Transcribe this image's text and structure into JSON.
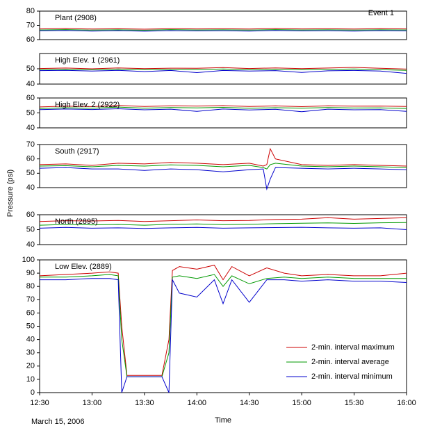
{
  "chart_data": [
    {
      "type": "line",
      "title": "Plant (2908)",
      "annotation": "Event 1",
      "x": [
        "12:30",
        "12:45",
        "13:00",
        "13:15",
        "13:30",
        "13:45",
        "14:00",
        "14:15",
        "14:30",
        "14:45",
        "15:00",
        "15:15",
        "15:30",
        "15:45",
        "16:00"
      ],
      "xlim": [
        "12:30",
        "16:00"
      ],
      "ylim": [
        60,
        80
      ],
      "yticks": [
        60,
        70,
        80
      ],
      "series": [
        {
          "color": "#cc0000",
          "values": [
            67.5,
            67.8,
            67.4,
            67.6,
            67.3,
            67.7,
            67.5,
            67.6,
            67.4,
            67.8,
            67.5,
            67.6,
            67.4,
            67.7,
            67.5
          ]
        },
        {
          "color": "#009900",
          "values": [
            66.8,
            67,
            66.7,
            66.9,
            66.6,
            67,
            66.8,
            66.9,
            66.7,
            67,
            66.8,
            66.9,
            66.7,
            66.9,
            66.8
          ]
        },
        {
          "color": "#0000cc",
          "values": [
            66.2,
            66.4,
            66,
            66.3,
            65.9,
            66.3,
            66.1,
            66.2,
            66,
            66.4,
            66.1,
            66.2,
            66,
            66.3,
            66.1
          ]
        }
      ]
    },
    {
      "type": "line",
      "title": "High Elev. 1 (2961)",
      "x": [
        "12:30",
        "12:45",
        "13:00",
        "13:15",
        "13:30",
        "13:45",
        "14:00",
        "14:15",
        "14:30",
        "14:45",
        "15:00",
        "15:15",
        "15:30",
        "15:45",
        "16:00"
      ],
      "xlim": [
        "12:30",
        "16:00"
      ],
      "ylim": [
        40,
        60
      ],
      "yticks": [
        40,
        50
      ],
      "series": [
        {
          "color": "#cc0000",
          "values": [
            50.2,
            50.5,
            50,
            50.6,
            50.1,
            50.4,
            50.3,
            50.8,
            50.2,
            50.6,
            50.1,
            50.5,
            50.9,
            50.3,
            49.8
          ]
        },
        {
          "color": "#009900",
          "values": [
            49.5,
            49.7,
            49.3,
            49.8,
            49.4,
            49.6,
            49.5,
            49.9,
            49.4,
            49.7,
            49.3,
            49.6,
            49.9,
            49.4,
            49
          ]
        },
        {
          "color": "#0000cc",
          "values": [
            48.8,
            49,
            48.5,
            49,
            48.2,
            48.9,
            47.5,
            48.9,
            48.5,
            48.8,
            47.6,
            48.7,
            48.9,
            48.5,
            47
          ]
        }
      ]
    },
    {
      "type": "line",
      "title": "High Elev. 2 (2922)",
      "x": [
        "12:30",
        "12:45",
        "13:00",
        "13:15",
        "13:30",
        "13:45",
        "14:00",
        "14:15",
        "14:30",
        "14:45",
        "15:00",
        "15:15",
        "15:30",
        "15:45",
        "16:00"
      ],
      "xlim": [
        "12:30",
        "16:00"
      ],
      "ylim": [
        40,
        60
      ],
      "yticks": [
        40,
        50,
        60
      ],
      "series": [
        {
          "color": "#cc0000",
          "values": [
            54,
            54.5,
            54.2,
            55,
            54.3,
            54.8,
            54.6,
            54.9,
            54.3,
            54.7,
            54.2,
            54.8,
            54.5,
            54.6,
            54.3
          ]
        },
        {
          "color": "#009900",
          "values": [
            53,
            53.5,
            53.1,
            53.9,
            53.2,
            53.6,
            53.4,
            53.7,
            53.1,
            53.5,
            53.2,
            53.6,
            53.3,
            53.4,
            53
          ]
        },
        {
          "color": "#0000cc",
          "values": [
            52.2,
            52.6,
            52.3,
            52.8,
            52.1,
            52.5,
            51,
            52.6,
            52,
            52.4,
            50.8,
            52.5,
            52.1,
            52.2,
            51
          ]
        }
      ]
    },
    {
      "type": "line",
      "title": "South (2917)",
      "x": [
        "12:30",
        "12:45",
        "13:00",
        "13:15",
        "13:30",
        "13:45",
        "14:00",
        "14:15",
        "14:30",
        "14:38",
        "14:40",
        "14:42",
        "14:45",
        "15:00",
        "15:15",
        "15:30",
        "15:45",
        "16:00"
      ],
      "xlim": [
        "12:30",
        "16:00"
      ],
      "ylim": [
        40,
        70
      ],
      "yticks": [
        40,
        50,
        60,
        70
      ],
      "series": [
        {
          "color": "#cc0000",
          "values": [
            56,
            56.5,
            55.5,
            57,
            56.5,
            57.5,
            57,
            56,
            57,
            55,
            56,
            67,
            60,
            56,
            55.5,
            56,
            55.5,
            55
          ]
        },
        {
          "color": "#009900",
          "values": [
            55,
            55.3,
            54.5,
            55.5,
            55,
            55.8,
            55.5,
            54.5,
            55.5,
            54,
            53,
            56,
            57,
            55,
            54.5,
            55,
            54.5,
            54
          ]
        },
        {
          "color": "#0000cc",
          "values": [
            53.5,
            54,
            53,
            53,
            52,
            53,
            52.5,
            51,
            52.5,
            53,
            39,
            46,
            54,
            53.5,
            53,
            53.5,
            53,
            52.5
          ]
        }
      ]
    },
    {
      "type": "line",
      "title": "North (2895)",
      "x": [
        "12:30",
        "12:45",
        "13:00",
        "13:15",
        "13:30",
        "13:45",
        "14:00",
        "14:15",
        "14:30",
        "14:45",
        "15:00",
        "15:15",
        "15:30",
        "15:45",
        "16:00"
      ],
      "xlim": [
        "12:30",
        "16:00"
      ],
      "ylim": [
        40,
        60
      ],
      "yticks": [
        40,
        50,
        60
      ],
      "series": [
        {
          "color": "#cc0000",
          "values": [
            55.5,
            56,
            55.8,
            56.2,
            55.5,
            56,
            56.5,
            56,
            56.2,
            56.8,
            57,
            58,
            57,
            57.5,
            58
          ]
        },
        {
          "color": "#009900",
          "values": [
            53,
            53.5,
            53.2,
            53.5,
            53,
            53.6,
            53.8,
            53.4,
            53.6,
            54,
            54.3,
            54.5,
            54.2,
            54.6,
            54.8
          ]
        },
        {
          "color": "#0000cc",
          "values": [
            51,
            51.5,
            51,
            51.2,
            50.8,
            51.2,
            51.5,
            51,
            51.2,
            51.4,
            51.6,
            51.2,
            51,
            51.2,
            50
          ]
        }
      ]
    },
    {
      "type": "line",
      "title": "Low Elev. (2889)",
      "x_label": "Time",
      "y_label": "Pressure (psi)",
      "note": "March 15, 2006",
      "legend": "lower right",
      "x": [
        "12:30",
        "12:45",
        "13:00",
        "13:10",
        "13:15",
        "13:17",
        "13:20",
        "13:30",
        "13:40",
        "13:44",
        "13:46",
        "13:50",
        "14:00",
        "14:10",
        "14:15",
        "14:20",
        "14:30",
        "14:40",
        "14:50",
        "15:00",
        "15:15",
        "15:30",
        "15:45",
        "16:00"
      ],
      "xlim": [
        "12:30",
        "16:00"
      ],
      "xticks": [
        "12:30",
        "13:00",
        "13:30",
        "14:00",
        "14:30",
        "15:00",
        "15:30",
        "16:00"
      ],
      "ylim": [
        0,
        100
      ],
      "yticks": [
        0,
        10,
        20,
        30,
        40,
        50,
        60,
        70,
        80,
        90,
        100
      ],
      "series": [
        {
          "name": "2-min. interval maximum",
          "color": "#cc0000",
          "values": [
            88,
            89,
            90,
            91,
            90,
            50,
            13,
            13,
            13,
            40,
            92,
            95,
            93,
            96,
            85,
            95,
            88,
            94,
            90,
            88,
            89,
            88,
            88,
            90
          ]
        },
        {
          "name": "2-min. interval average",
          "color": "#009900",
          "values": [
            87,
            87,
            88,
            89,
            88,
            40,
            12,
            12,
            12,
            30,
            87,
            88,
            86,
            89,
            80,
            88,
            82,
            86,
            87,
            86,
            87,
            86,
            86,
            86
          ]
        },
        {
          "name": "2-min. interval minimum",
          "color": "#0000cc",
          "values": [
            85,
            85,
            86,
            86,
            85,
            0,
            12,
            12,
            12,
            0,
            85,
            75,
            72,
            85,
            67,
            85,
            68,
            85,
            85,
            84,
            85,
            84,
            84,
            83
          ]
        }
      ]
    }
  ]
}
